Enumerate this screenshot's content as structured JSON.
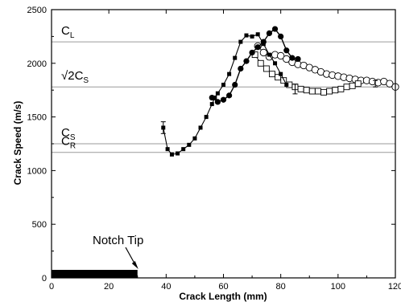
{
  "chart_data": {
    "type": "line",
    "xlabel": "Crack Length (mm)",
    "ylabel": "Crack Speed (m/s)",
    "xlim": [
      0,
      120
    ],
    "ylim": [
      0,
      2500
    ],
    "x_ticks": [
      "0",
      "20",
      "40",
      "60",
      "80",
      "100",
      "120"
    ],
    "y_ticks": [
      "0",
      "500",
      "1000",
      "1500",
      "2000",
      "2500"
    ],
    "reference_lines": [
      {
        "main": "C",
        "prefix": "",
        "sub": "L",
        "value": 2200
      },
      {
        "main": "C",
        "prefix": "√2",
        "sub": "S",
        "value": 1780
      },
      {
        "main": "C",
        "prefix": "",
        "sub": "S",
        "value": 1250
      },
      {
        "main": "C",
        "prefix": "",
        "sub": "R",
        "value": 1170
      }
    ],
    "annotation": {
      "text": "Notch Tip",
      "notch_end_x": 30
    },
    "series": [
      {
        "marker": "small filled square",
        "x": [
          39,
          40.5,
          42,
          44,
          46,
          48,
          50,
          52,
          54,
          56,
          57,
          58,
          60,
          62,
          64,
          66,
          68,
          70,
          72,
          74,
          76,
          78,
          80,
          82
        ],
        "y": [
          1400,
          1200,
          1150,
          1160,
          1200,
          1240,
          1300,
          1400,
          1500,
          1620,
          1680,
          1720,
          1800,
          1900,
          2050,
          2200,
          2260,
          2250,
          2270,
          2180,
          2080,
          2000,
          1900,
          1800
        ]
      },
      {
        "marker": "large filled circle",
        "x": [
          56,
          58,
          60,
          62,
          64,
          66,
          68,
          70,
          72,
          74,
          76,
          78,
          80,
          82,
          84,
          86
        ],
        "y": [
          1680,
          1640,
          1660,
          1700,
          1800,
          1950,
          2020,
          2100,
          2150,
          2200,
          2280,
          2320,
          2250,
          2120,
          2050,
          2040
        ]
      },
      {
        "marker": "open square",
        "x": [
          71,
          73,
          75,
          77,
          79,
          81,
          83,
          85,
          87,
          89,
          91,
          93,
          95,
          97,
          99,
          101,
          103,
          105,
          107
        ],
        "y": [
          2080,
          2000,
          1950,
          1900,
          1870,
          1840,
          1800,
          1780,
          1760,
          1750,
          1740,
          1740,
          1730,
          1740,
          1750,
          1760,
          1780,
          1790,
          1810
        ]
      },
      {
        "marker": "open circle",
        "x": [
          72,
          74,
          76,
          78,
          80,
          82,
          84,
          86,
          88,
          90,
          92,
          94,
          96,
          98,
          100,
          102,
          104,
          106,
          108,
          110,
          112,
          114,
          116,
          118,
          120
        ],
        "y": [
          2160,
          2100,
          2060,
          2080,
          2070,
          2040,
          2010,
          1990,
          1980,
          1960,
          1940,
          1920,
          1900,
          1890,
          1880,
          1870,
          1860,
          1850,
          1840,
          1840,
          1830,
          1820,
          1830,
          1810,
          1780
        ]
      }
    ]
  }
}
